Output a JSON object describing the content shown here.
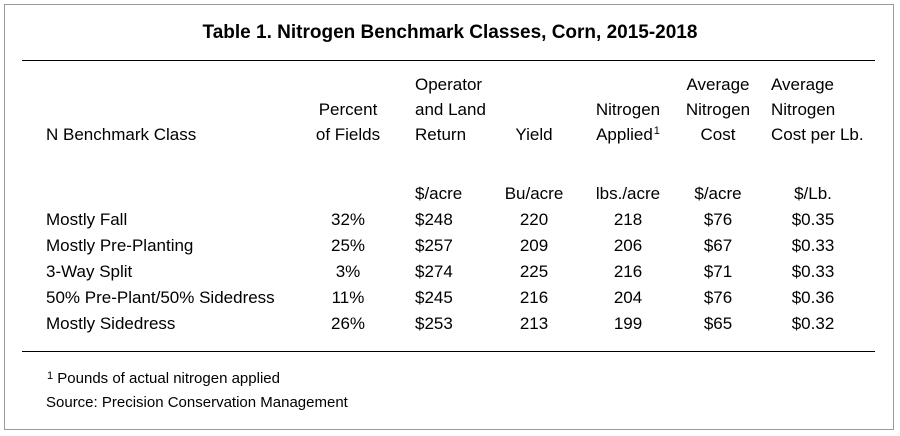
{
  "title": "Table 1.  Nitrogen Benchmark Classes, Corn, 2015-2018",
  "headers": {
    "class": [
      "N Benchmark Class"
    ],
    "percent": [
      "Percent",
      "of Fields"
    ],
    "return": [
      "Operator",
      "and Land",
      "Return"
    ],
    "yield": [
      "Yield"
    ],
    "applied": [
      "Nitrogen",
      "Applied"
    ],
    "applied_sup": "1",
    "cost": [
      "Average",
      "Nitrogen",
      "Cost"
    ],
    "costlb": [
      "Average",
      "Nitrogen",
      "Cost per Lb."
    ]
  },
  "units": [
    "",
    "",
    "$/acre",
    "Bu/acre",
    "lbs./acre",
    "$/acre",
    "$/Lb."
  ],
  "rows": [
    [
      "Mostly Fall",
      "32%",
      "$248",
      "220",
      "218",
      "$76",
      "$0.35"
    ],
    [
      "Mostly Pre-Planting",
      "25%",
      "$257",
      "209",
      "206",
      "$67",
      "$0.33"
    ],
    [
      "3-Way Split",
      "3%",
      "$274",
      "225",
      "216",
      "$71",
      "$0.33"
    ],
    [
      "50% Pre-Plant/50% Sidedress",
      "11%",
      "$245",
      "216",
      "204",
      "$76",
      "$0.36"
    ],
    [
      "Mostly Sidedress",
      "26%",
      "$253",
      "213",
      "199",
      "$65",
      "$0.32"
    ]
  ],
  "footnotes": {
    "note_sup": "1",
    "note": " Pounds of actual nitrogen applied",
    "source": "Source: Precision Conservation Management"
  }
}
